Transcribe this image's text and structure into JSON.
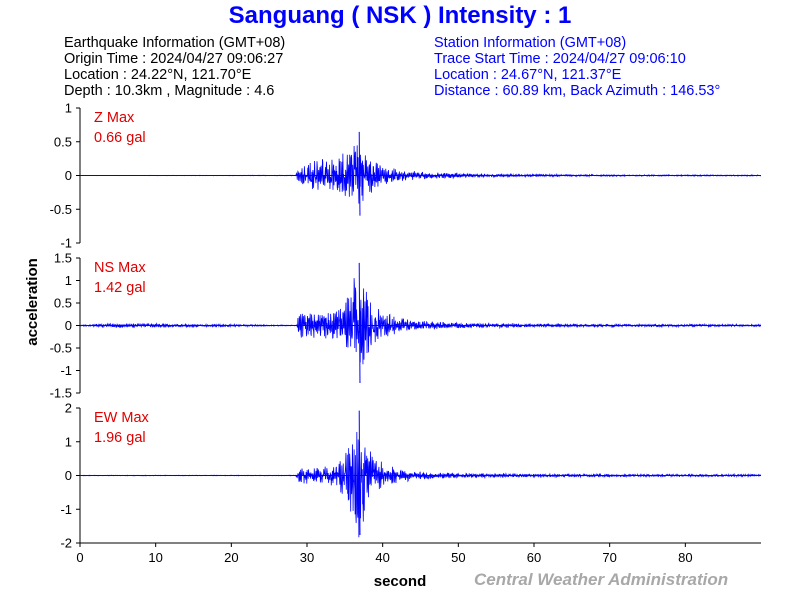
{
  "header": {
    "title": "Sanguang  ( NSK )  Intensity : 1"
  },
  "earthquake_info": {
    "heading": "Earthquake Information  (GMT+08)",
    "origin_time": "Origin Time : 2024/04/27 09:06:27",
    "location": "Location : 24.22°N, 121.70°E",
    "depth_magnitude": "Depth : 10.3km , Magnitude : 4.6"
  },
  "station_info": {
    "heading": "Station Information  (GMT+08)",
    "trace_start": "Trace Start Time : 2024/04/27 09:06:10",
    "location": "Location : 24.67°N, 121.37°E",
    "distance": "Distance : 60.89 km, Back Azimuth : 146.53°"
  },
  "footer": {
    "credit": "Central Weather Administration"
  },
  "colors": {
    "trace": "#0000ff",
    "max_label": "#e00000",
    "title": "#0000ff",
    "footer": "#a8a8a8"
  },
  "chart_data": {
    "type": "line",
    "xlabel": "second",
    "ylabel": "acceleration",
    "xlim": [
      0,
      90
    ],
    "x_ticks": [
      0,
      10,
      20,
      30,
      40,
      50,
      60,
      70,
      80
    ],
    "grid": false,
    "panels": [
      {
        "name": "Z",
        "max_label": "Z Max",
        "max_value": "0.66 gal",
        "ylim": [
          -1,
          1
        ],
        "y_ticks": [
          1,
          0.5,
          0,
          -0.5,
          -1
        ],
        "series": [
          {
            "x": [
              0,
              28.5,
              29,
              30,
              31,
              32,
              33,
              34,
              35,
              36,
              36.9,
              37.2,
              38,
              39,
              40,
              41,
              42,
              44,
              46,
              50,
              55,
              60,
              70,
              80,
              90
            ],
            "envelope": [
              0.002,
              0.005,
              0.18,
              0.2,
              0.22,
              0.25,
              0.22,
              0.3,
              0.38,
              0.45,
              0.66,
              0.45,
              0.32,
              0.22,
              0.16,
              0.12,
              0.1,
              0.07,
              0.05,
              0.035,
              0.025,
              0.018,
              0.012,
              0.01,
              0.008
            ]
          }
        ]
      },
      {
        "name": "NS",
        "max_label": "NS Max",
        "max_value": "1.42 gal",
        "ylim": [
          -1.5,
          1.5
        ],
        "y_ticks": [
          1.5,
          1,
          0.5,
          0,
          -0.5,
          -1,
          -1.5
        ],
        "series": [
          {
            "x": [
              0,
              4.8,
              6.5,
              28.5,
              29,
              30,
              31,
              32,
              33,
              34,
              35,
              36,
              36.9,
              37.3,
              38,
              39,
              40,
              41,
              42,
              44,
              46,
              50,
              55,
              60,
              70,
              80,
              90
            ],
            "envelope": [
              0.01,
              0.05,
              0.05,
              0.01,
              0.3,
              0.35,
              0.3,
              0.35,
              0.3,
              0.4,
              0.6,
              0.95,
              1.42,
              1.1,
              0.8,
              0.45,
              0.35,
              0.25,
              0.2,
              0.12,
              0.09,
              0.06,
              0.05,
              0.04,
              0.03,
              0.03,
              0.025
            ]
          }
        ]
      },
      {
        "name": "EW",
        "max_label": "EW Max",
        "max_value": "1.96 gal",
        "ylim": [
          -2,
          2
        ],
        "y_ticks": [
          2,
          1,
          0,
          -1,
          -2
        ],
        "series": [
          {
            "x": [
              0,
              28.5,
              29,
              30,
              31,
              32,
              33,
              34,
              35,
              36,
              36.9,
              37.3,
              38,
              39,
              40,
              41,
              42,
              44,
              46,
              50,
              55,
              60,
              70,
              80,
              90
            ],
            "envelope": [
              0.01,
              0.01,
              0.25,
              0.3,
              0.25,
              0.3,
              0.3,
              0.4,
              0.7,
              1.3,
              1.96,
              1.5,
              1.0,
              0.6,
              0.4,
              0.3,
              0.22,
              0.15,
              0.1,
              0.07,
              0.06,
              0.05,
              0.04,
              0.035,
              0.03
            ]
          }
        ]
      }
    ]
  }
}
